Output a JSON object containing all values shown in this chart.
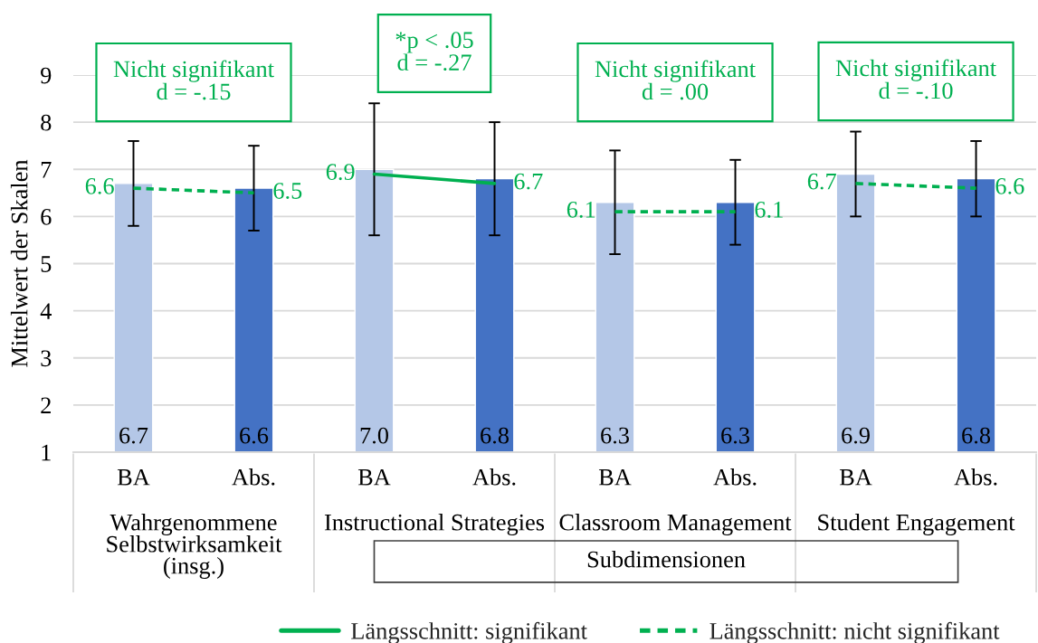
{
  "chart_data": {
    "type": "bar",
    "ylabel": "Mittelwert der Skalen",
    "categories": [
      "BA",
      "Abs.",
      "BA",
      "Abs.",
      "BA",
      "Abs.",
      "BA",
      "Abs."
    ],
    "ylim": [
      1,
      9
    ],
    "yticks": [
      1,
      2,
      3,
      4,
      5,
      6,
      7,
      8,
      9
    ],
    "grid": "y",
    "legend": "bottom",
    "series": [
      {
        "colors": [
          "#b4c7e7",
          "#4472c4",
          "#b4c7e7",
          "#4472c4",
          "#b4c7e7",
          "#4472c4",
          "#b4c7e7",
          "#4472c4"
        ],
        "values": [
          6.7,
          6.6,
          7.0,
          6.8,
          6.3,
          6.3,
          6.9,
          6.8
        ],
        "errors": [
          0.9,
          0.9,
          1.4,
          1.2,
          1.1,
          0.9,
          0.9,
          0.8
        ],
        "value_labels": [
          "6.7",
          "6.6",
          "7.0",
          "6.8",
          "6.3",
          "6.3",
          "6.9",
          "6.8"
        ]
      },
      {
        "type": "line",
        "name": "Längsschnitt: signifikant",
        "color": "#00b050",
        "line_style": "solid",
        "values": [
          null,
          null,
          6.9,
          6.7,
          null,
          null,
          null,
          null
        ],
        "value_labels": [
          null,
          null,
          "6.9",
          "6.7",
          null,
          null,
          null,
          null
        ]
      },
      {
        "type": "line",
        "name": "Längsschnitt: nicht signifikant",
        "color": "#00b050",
        "line_style": "dashed",
        "values": [
          6.6,
          6.5,
          null,
          null,
          null,
          null,
          null,
          null
        ],
        "value_labels": [
          "6.6",
          "6.5",
          null,
          null,
          null,
          null,
          null,
          null
        ]
      },
      {
        "type": "line",
        "color": "#00b050",
        "line_style": "dashed",
        "values": [
          null,
          null,
          null,
          null,
          6.1,
          6.1,
          null,
          null
        ],
        "value_labels": [
          null,
          null,
          null,
          null,
          "6.1",
          "6.1",
          null,
          null
        ]
      },
      {
        "type": "line",
        "color": "#00b050",
        "line_style": "dashed",
        "values": [
          null,
          null,
          null,
          null,
          null,
          null,
          6.7,
          6.6
        ],
        "value_labels": [
          null,
          null,
          null,
          null,
          null,
          null,
          "6.7",
          "6.6"
        ]
      }
    ],
    "annotations": [
      "Nicht signifikant\nd = -.15",
      "*p < .05\nd = -.27",
      "Nicht signifikant\nd = .00",
      "Nicht signifikant\nd = -.10",
      "Wahrgenommene\nSelbstwirksamkeit\n(insg.)",
      "Instructional Strategies",
      "Classroom Management",
      "Student Engagement",
      "Subdimensionen"
    ]
  }
}
